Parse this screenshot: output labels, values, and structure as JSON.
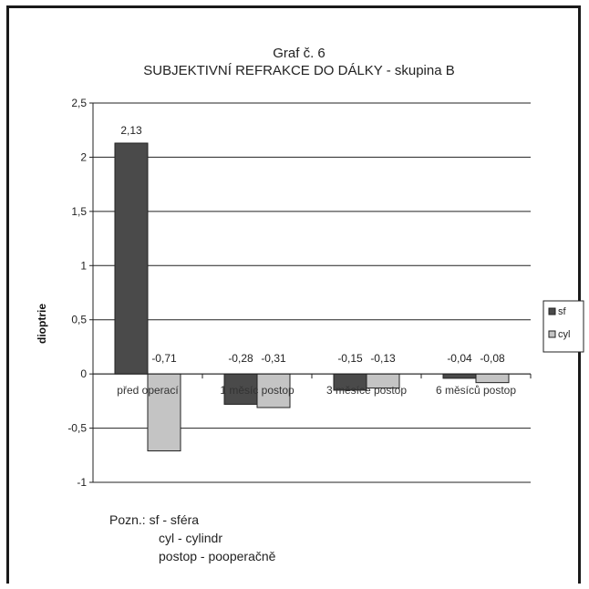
{
  "chart_data": {
    "type": "bar",
    "title": "Graf č. 6",
    "subtitle": "SUBJEKTIVNÍ REFRAKCE  DO DÁLKY  - skupina B",
    "ylabel": "dioptrie",
    "xlabel": "",
    "ylim": [
      -1,
      2.5
    ],
    "yticks": [
      "2,5",
      "2",
      "1,5",
      "1",
      "0,5",
      "0",
      "-0,5",
      "-1"
    ],
    "ytick_values": [
      2.5,
      2,
      1.5,
      1,
      0.5,
      0,
      -0.5,
      -1
    ],
    "grid": true,
    "legend_position": "right",
    "categories": [
      "před operací",
      "1 měsíc postop",
      "3 měsíce postop",
      "6 měsíců postop"
    ],
    "series": [
      {
        "name": "sf",
        "color": "#4a4a4a",
        "values": [
          2.13,
          -0.28,
          -0.15,
          -0.04
        ],
        "labels": [
          "2,13",
          "-0,28",
          "-0,15",
          "-0,04"
        ]
      },
      {
        "name": "cyl",
        "color": "#c4c4c4",
        "values": [
          -0.71,
          -0.31,
          -0.13,
          -0.08
        ],
        "labels": [
          "-0,71",
          "-0,31",
          "-0,13",
          "-0,08"
        ]
      }
    ]
  },
  "note": {
    "prefix": "Pozn.:",
    "lines": [
      "sf - sféra",
      "cyl - cylindr",
      "postop - pooperačně"
    ]
  }
}
